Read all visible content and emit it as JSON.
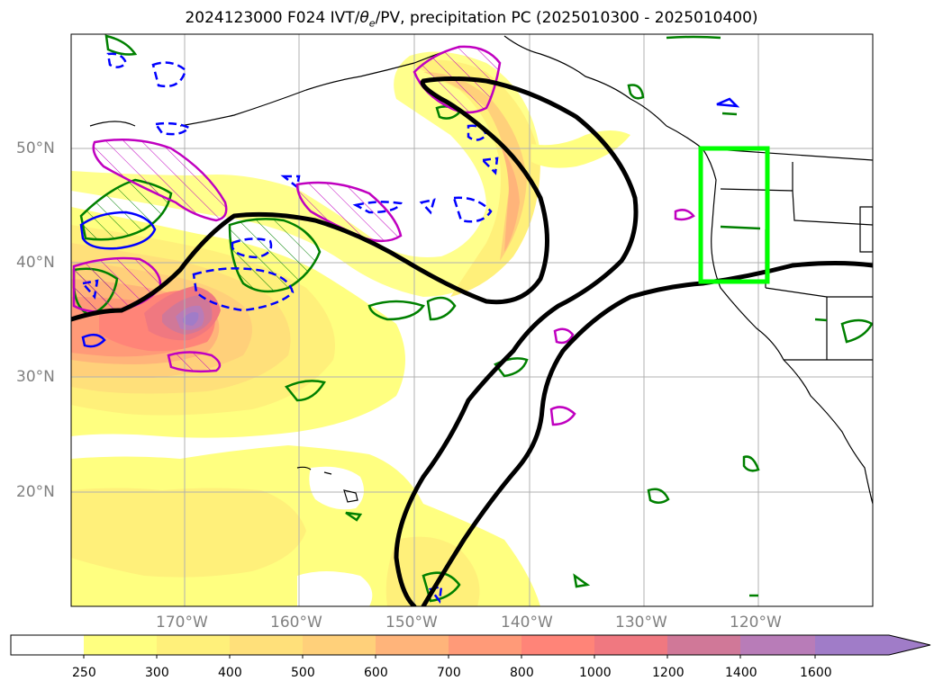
{
  "title": "2024123000 F024 IVT/θe/PV, precipitation PC (2025010300 - 2025010400)",
  "title_parts": {
    "prefix": "2024123000 F024 IVT/",
    "theta": "θ",
    "theta_sub": "e",
    "suffix": "/PV, precipitation PC (2025010300 - 2025010400)"
  },
  "lat_labels": [
    "50°N",
    "40°N",
    "30°N",
    "20°N"
  ],
  "lon_labels": [
    "170°W",
    "160°W",
    "150°W",
    "140°W",
    "130°W",
    "120°W"
  ],
  "colorbar": {
    "ticks": [
      "250",
      "300",
      "400",
      "500",
      "600",
      "700",
      "800",
      "1000",
      "1200",
      "1400",
      "1600"
    ],
    "colors": [
      "#ffffff",
      "#ffff80",
      "#fff07a",
      "#ffe07a",
      "#ffd07a",
      "#ffb47a",
      "#ff9a78",
      "#ff8478",
      "#f07880",
      "#d07898",
      "#b87cb8",
      "#a07cc8"
    ]
  },
  "highlight_box_color": "#00ff00",
  "colors": {
    "jet_contour": "#000000",
    "pv_positive": "#008000",
    "pv_negative": "#0000ff",
    "theta_e": "#c000c0"
  }
}
